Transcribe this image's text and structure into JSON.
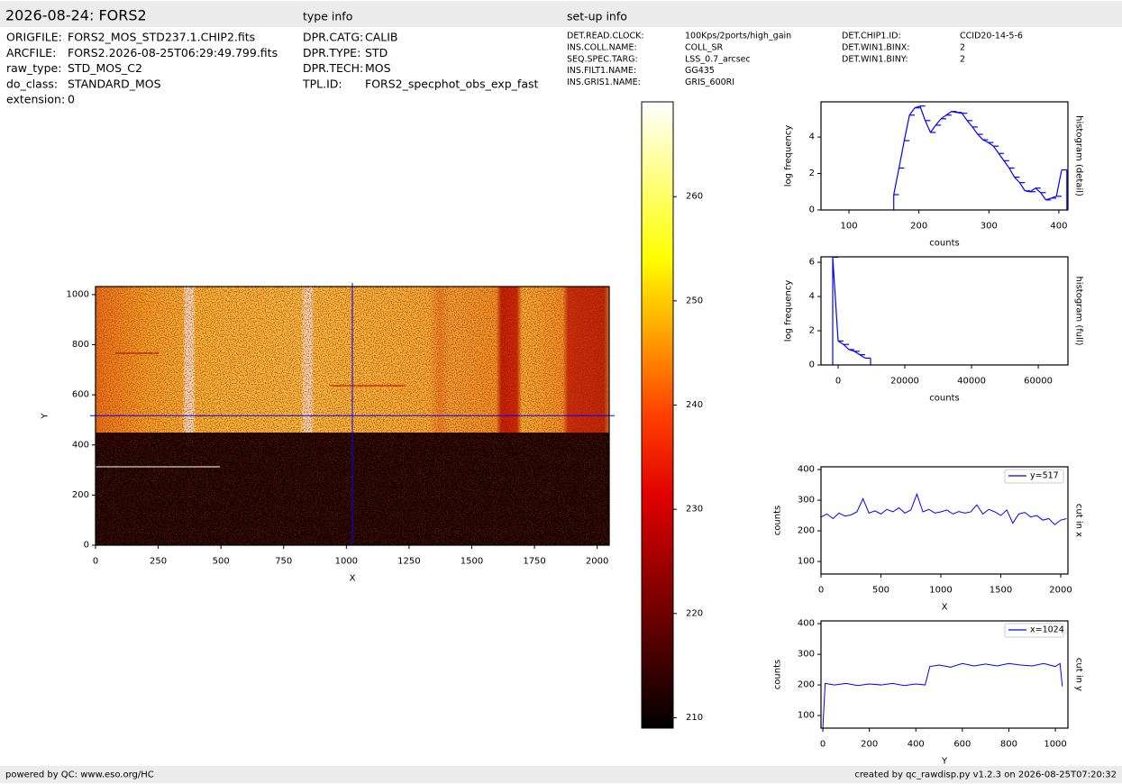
{
  "header": {
    "title": "2026-08-24: FORS2",
    "type_info": "type info",
    "setup_info": "set-up info"
  },
  "file_info": [
    [
      "ORIGFILE:",
      "FORS2_MOS_STD237.1.CHIP2.fits"
    ],
    [
      "ARCFILE:",
      "FORS2.2026-08-25T06:29:49.799.fits"
    ],
    [
      "raw_type:",
      "STD_MOS_C2"
    ],
    [
      "do_class:",
      "STANDARD_MOS"
    ],
    [
      "extension:",
      "0"
    ]
  ],
  "type_info": [
    [
      "DPR.CATG:",
      "CALIB"
    ],
    [
      "DPR.TYPE:",
      "STD"
    ],
    [
      "DPR.TECH:",
      "MOS"
    ],
    [
      "TPL.ID:",
      "FORS2_specphot_obs_exp_fast"
    ]
  ],
  "setup_info": [
    [
      "DET.READ.CLOCK:",
      "100Kps/2ports/high_gain"
    ],
    [
      "INS.COLL.NAME:",
      "COLL_SR"
    ],
    [
      "SEQ.SPEC.TARG:",
      "LSS_0.7_arcsec"
    ],
    [
      "INS.FILT1.NAME:",
      "GG435"
    ],
    [
      "INS.GRIS1.NAME:",
      "GRIS_600RI"
    ],
    [
      "DET.CHIP1.ID:",
      "CCID20-14-5-6"
    ],
    [
      "DET.WIN1.BINX:",
      "2"
    ],
    [
      "DET.WIN1.BINY:",
      "2"
    ]
  ],
  "footer": {
    "left": "powered by QC: www.eso.org/HC",
    "right": "created by qc_rawdisp.py v1.2.3 on 2026-08-25T07:20:32"
  },
  "chart_data": [
    {
      "type": "image",
      "xlabel": "X",
      "ylabel": "Y",
      "xlim": [
        0,
        2048
      ],
      "ylim": [
        0,
        1032
      ],
      "xticks": [
        0,
        250,
        500,
        750,
        1000,
        1250,
        1500,
        1750,
        2000
      ],
      "yticks": [
        0,
        200,
        400,
        600,
        800,
        1000
      ],
      "crosshair": {
        "x": 1024,
        "y": 517
      },
      "crosshair_color": "#0000ff"
    },
    {
      "type": "colorbar",
      "ylim": [
        209,
        269.1
      ],
      "yticks": [
        210,
        220,
        230,
        240,
        250,
        260
      ]
    },
    {
      "type": "histogram",
      "xlabel": "counts",
      "ylabel": "log frequency",
      "side_label": "histogram (detail)",
      "color": "#0000ff",
      "xlim": [
        60,
        413
      ],
      "ylim": [
        0,
        5.93
      ],
      "xticks": [
        100,
        200,
        300,
        400
      ],
      "yticks": [
        0,
        2,
        4
      ],
      "bins": [
        164,
        171.5,
        179,
        186.5,
        194,
        201.5,
        209,
        216.5,
        224,
        231.5,
        239,
        246.5,
        254,
        261.5,
        269,
        276.5,
        284,
        291.5,
        299,
        306.5,
        314,
        321.5,
        329,
        336.5,
        344,
        351.5,
        359,
        366.5,
        374,
        381.5,
        389,
        396.5,
        404,
        411.5
      ],
      "values": [
        0.84,
        2.3,
        3.8,
        5.2,
        5.6,
        5.7,
        4.9,
        4.25,
        4.65,
        5.0,
        5.2,
        5.4,
        5.35,
        5.3,
        4.9,
        4.55,
        4.15,
        3.85,
        3.7,
        3.5,
        3.1,
        2.7,
        2.3,
        1.8,
        1.5,
        1.05,
        1.0,
        1.2,
        0.95,
        0.55,
        0.65,
        0.75,
        2.2
      ]
    },
    {
      "type": "histogram",
      "xlabel": "counts",
      "ylabel": "log frequency",
      "side_label": "histogram (full)",
      "color": "#0000ff",
      "xlim": [
        -5135,
        68900
      ],
      "ylim": [
        0,
        6.32
      ],
      "xticks": [
        0,
        20000,
        40000,
        60000
      ],
      "yticks": [
        0,
        2,
        4,
        6
      ],
      "bins": [
        -1620,
        0,
        1620,
        3240,
        4860,
        6480,
        8100,
        9720
      ],
      "values": [
        6.3,
        1.4,
        1.2,
        0.9,
        0.8,
        0.6,
        0.4
      ]
    },
    {
      "type": "line",
      "xlabel": "X",
      "ylabel": "counts",
      "side_label": "cut in x",
      "xlim": [
        0,
        2060
      ],
      "ylim": [
        59,
        409
      ],
      "xticks": [
        0,
        500,
        1000,
        1500,
        2000
      ],
      "yticks": [
        100,
        200,
        300,
        400
      ],
      "x": [
        0,
        50,
        100,
        150,
        200,
        250,
        300,
        350,
        400,
        450,
        500,
        550,
        600,
        650,
        700,
        750,
        800,
        850,
        900,
        950,
        1000,
        1050,
        1100,
        1150,
        1200,
        1250,
        1300,
        1350,
        1400,
        1450,
        1500,
        1550,
        1600,
        1650,
        1700,
        1750,
        1800,
        1850,
        1900,
        1950,
        2000,
        2048
      ],
      "series": [
        {
          "name": "y=517",
          "color": "#0000ff",
          "values": [
            245,
            255,
            240,
            258,
            248,
            252,
            262,
            305,
            258,
            265,
            255,
            270,
            262,
            275,
            258,
            268,
            320,
            262,
            270,
            258,
            262,
            268,
            255,
            263,
            258,
            262,
            285,
            255,
            270,
            262,
            250,
            268,
            225,
            255,
            260,
            245,
            250,
            235,
            240,
            220,
            235,
            240
          ]
        }
      ]
    },
    {
      "type": "line",
      "xlabel": "Y",
      "ylabel": "counts",
      "side_label": "cut in y",
      "xlim": [
        -8,
        1054
      ],
      "ylim": [
        59,
        409
      ],
      "xticks": [
        0,
        200,
        400,
        600,
        800,
        1000
      ],
      "yticks": [
        100,
        200,
        300,
        400
      ],
      "x": [
        0,
        10,
        50,
        100,
        150,
        200,
        250,
        300,
        350,
        400,
        440,
        460,
        500,
        550,
        600,
        650,
        700,
        750,
        800,
        850,
        900,
        950,
        1000,
        1020,
        1030
      ],
      "series": [
        {
          "name": "x=1024",
          "color": "#0000ff",
          "values": [
            60,
            205,
            200,
            205,
            198,
            203,
            200,
            205,
            198,
            203,
            200,
            260,
            265,
            258,
            270,
            262,
            268,
            262,
            270,
            265,
            262,
            270,
            260,
            270,
            195
          ]
        }
      ]
    }
  ]
}
